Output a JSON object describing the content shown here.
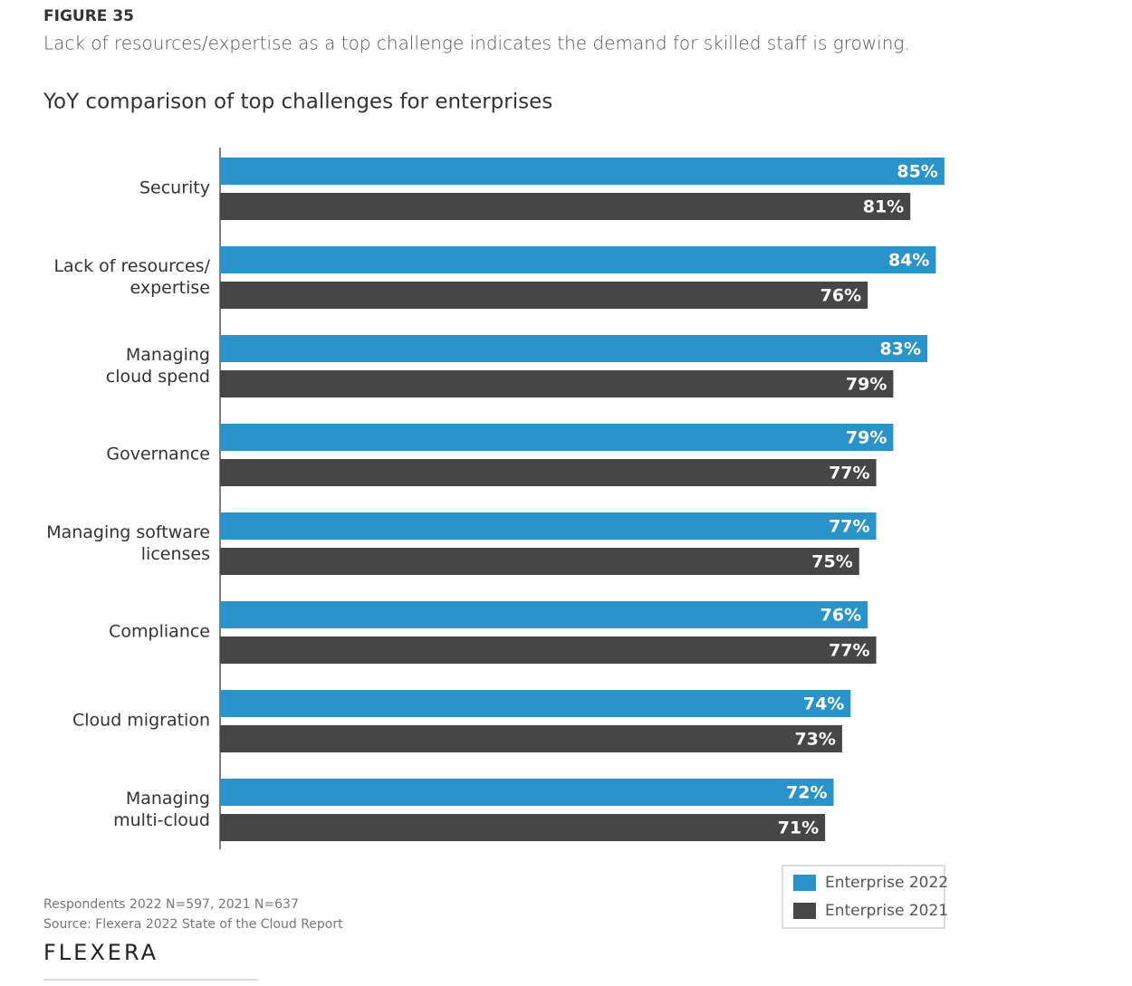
{
  "figure_label": "FIGURE 35",
  "headline": "Lack of resources/expertise as a top challenge indicates the demand for skilled staff is growing.",
  "chart_data": {
    "type": "hbar",
    "title": "YoY comparison of top challenges for enterprises",
    "categories": [
      "Security",
      "Lack of resources/\nexpertise",
      "Managing\ncloud spend",
      "Governance",
      "Managing software\nlicenses",
      "Compliance",
      "Cloud migration",
      "Managing\nmulti-cloud"
    ],
    "series": [
      {
        "name": "Enterprise 2022",
        "color": "#2a93c9",
        "values": [
          85,
          84,
          83,
          79,
          77,
          76,
          74,
          72
        ],
        "value_labels": [
          "85%",
          "84%",
          "83%",
          "79%",
          "77%",
          "76%",
          "74%",
          "72%"
        ]
      },
      {
        "name": "Enterprise 2021",
        "color": "#464646",
        "values": [
          81,
          76,
          79,
          77,
          75,
          77,
          73,
          71
        ],
        "value_labels": [
          "81%",
          "76%",
          "79%",
          "77%",
          "75%",
          "77%",
          "73%",
          "71%"
        ]
      }
    ],
    "xlim": [
      0,
      100
    ],
    "legend": "bottom-right"
  },
  "footer": {
    "respondents": "Respondents 2022 N=597, 2021 N=637",
    "source": "Source: Flexera 2022 State of the Cloud Report",
    "logo": "FLEXERA"
  }
}
